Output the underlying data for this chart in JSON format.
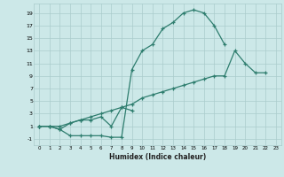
{
  "xlabel": "Humidex (Indice chaleur)",
  "background_color": "#cce8e8",
  "grid_color": "#aacccc",
  "line_color": "#2e7d6e",
  "line1_x": [
    0,
    1,
    2,
    3,
    4,
    5,
    6,
    7,
    8,
    9,
    10,
    11,
    12,
    13,
    14,
    15,
    16,
    17,
    18
  ],
  "line1_y": [
    1,
    1,
    0.5,
    -0.5,
    -0.5,
    -0.5,
    -0.5,
    -0.75,
    -0.75,
    10,
    13,
    14,
    16.5,
    17.5,
    19,
    19.5,
    19,
    17,
    14
  ],
  "line2_x": [
    0,
    1,
    2,
    3,
    4,
    5,
    6,
    7,
    8,
    9
  ],
  "line2_y": [
    1,
    1,
    0.5,
    1.5,
    2,
    2,
    2.5,
    1,
    4,
    3.5
  ],
  "line3_x": [
    0,
    1,
    2,
    3,
    4,
    5,
    6,
    7,
    8,
    9,
    10,
    11,
    12,
    13,
    14,
    15,
    16,
    17,
    18,
    19,
    20,
    21,
    22
  ],
  "line3_y": [
    1,
    1,
    1,
    1.5,
    2,
    2.5,
    3,
    3.5,
    4.0,
    4.5,
    5.5,
    6.0,
    6.5,
    7.0,
    7.5,
    8.0,
    8.5,
    9.0,
    9.0,
    13,
    11,
    9.5,
    9.5
  ],
  "xlim": [
    -0.5,
    23.5
  ],
  "ylim": [
    -2,
    20.5
  ],
  "yticks": [
    -1,
    1,
    3,
    5,
    7,
    9,
    11,
    13,
    15,
    17,
    19
  ],
  "xticks": [
    0,
    1,
    2,
    3,
    4,
    5,
    6,
    7,
    8,
    9,
    10,
    11,
    12,
    13,
    14,
    15,
    16,
    17,
    18,
    19,
    20,
    21,
    22,
    23
  ]
}
